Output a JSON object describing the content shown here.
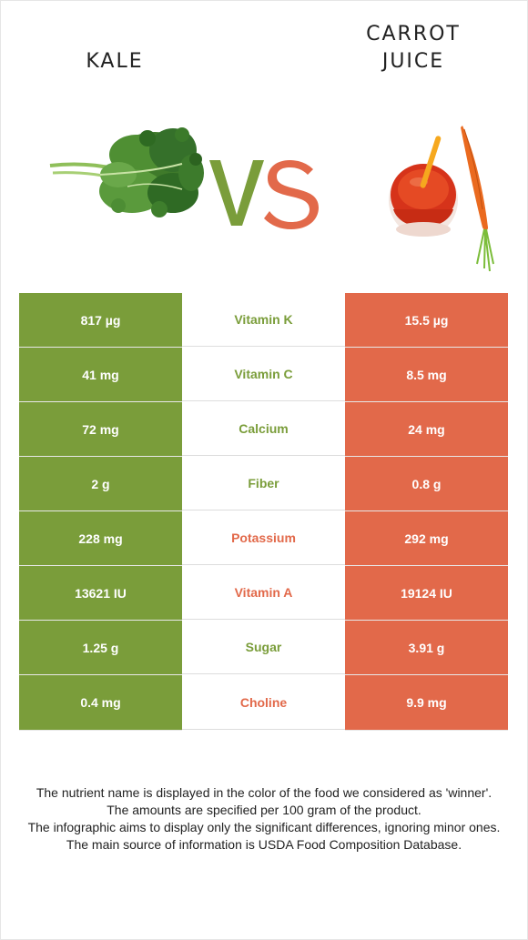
{
  "header": {
    "left_food": "KALE",
    "right_food_line1": "CARROT",
    "right_food_line2": "JUICE",
    "vs_label": "VS"
  },
  "colors": {
    "kale_green": "#7a9d3a",
    "carrot_orange": "#e2694a",
    "vs_v": "#7a9d3a",
    "vs_s": "#e2694a"
  },
  "icons": {
    "left_image": "kale-leaf-icon",
    "right_image": "carrot-juice-glass-icon"
  },
  "nutrients": [
    {
      "name": "Vitamin K",
      "left": "817 µg",
      "right": "15.5 µg",
      "winner": "left"
    },
    {
      "name": "Vitamin C",
      "left": "41 mg",
      "right": "8.5 mg",
      "winner": "left"
    },
    {
      "name": "Calcium",
      "left": "72 mg",
      "right": "24 mg",
      "winner": "left"
    },
    {
      "name": "Fiber",
      "left": "2 g",
      "right": "0.8 g",
      "winner": "left"
    },
    {
      "name": "Potassium",
      "left": "228 mg",
      "right": "292 mg",
      "winner": "right"
    },
    {
      "name": "Vitamin A",
      "left": "13621 IU",
      "right": "19124 IU",
      "winner": "right"
    },
    {
      "name": "Sugar",
      "left": "1.25 g",
      "right": "3.91 g",
      "winner": "left"
    },
    {
      "name": "Choline",
      "left": "0.4 mg",
      "right": "9.9 mg",
      "winner": "right"
    }
  ],
  "footnote": {
    "line1": "The nutrient name is displayed in the color of the food we considered as 'winner'.",
    "line2": "The amounts are specified per 100 gram of the product.",
    "line3": "The infographic aims to display only the significant differences, ignoring minor ones.",
    "line4": "The main source of information is USDA Food Composition Database."
  }
}
